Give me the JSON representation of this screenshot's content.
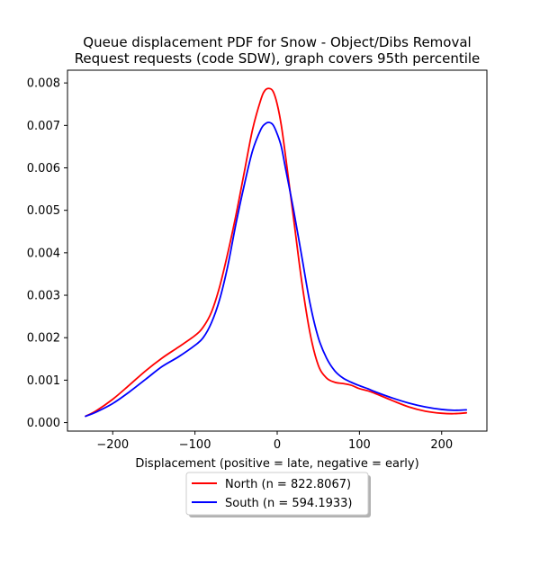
{
  "chart_data": {
    "type": "line",
    "title_lines": [
      "Queue displacement PDF for Snow - Object/Dibs Removal",
      "Request  requests (code SDW), graph covers 95th percentile"
    ],
    "xlabel": "Displacement (positive = late, negative = early)",
    "ylabel": "",
    "xlim": [
      -255,
      255
    ],
    "ylim": [
      -0.0002,
      0.0083
    ],
    "x_ticks": [
      -200,
      -100,
      0,
      100,
      200
    ],
    "x_tick_labels": [
      "−200",
      "−100",
      "0",
      "100",
      "200"
    ],
    "y_ticks": [
      0,
      0.001,
      0.002,
      0.003,
      0.004,
      0.005,
      0.006,
      0.007,
      0.008
    ],
    "y_tick_labels": [
      "0.000",
      "0.001",
      "0.002",
      "0.003",
      "0.004",
      "0.005",
      "0.006",
      "0.007",
      "0.008"
    ],
    "grid": false,
    "legend_position": "below-center",
    "series": [
      {
        "name": "North (n = 822.8067)",
        "color": "#ff0000",
        "x": [
          -233,
          -220,
          -200,
          -180,
          -160,
          -140,
          -120,
          -100,
          -90,
          -80,
          -70,
          -60,
          -50,
          -40,
          -30,
          -20,
          -15,
          -10,
          -5,
          0,
          5,
          10,
          20,
          30,
          40,
          50,
          60,
          70,
          80,
          90,
          100,
          110,
          120,
          140,
          160,
          180,
          200,
          215,
          230
        ],
        "y": [
          0.00015,
          0.00028,
          0.00055,
          0.00088,
          0.00122,
          0.00152,
          0.00178,
          0.00205,
          0.00225,
          0.0026,
          0.0032,
          0.004,
          0.0049,
          0.0059,
          0.0069,
          0.0076,
          0.00782,
          0.00787,
          0.0078,
          0.0075,
          0.007,
          0.0063,
          0.0048,
          0.0033,
          0.0021,
          0.00135,
          0.00105,
          0.00095,
          0.00092,
          0.00088,
          0.0008,
          0.00075,
          0.00068,
          0.00052,
          0.00037,
          0.00027,
          0.00022,
          0.00021,
          0.00023
        ]
      },
      {
        "name": "South (n = 594.1933)",
        "color": "#0000ff",
        "x": [
          -233,
          -220,
          -200,
          -180,
          -160,
          -140,
          -120,
          -100,
          -90,
          -80,
          -70,
          -60,
          -50,
          -40,
          -30,
          -20,
          -15,
          -10,
          -5,
          0,
          5,
          10,
          20,
          30,
          40,
          50,
          60,
          70,
          80,
          90,
          100,
          110,
          120,
          140,
          160,
          180,
          200,
          215,
          230
        ],
        "y": [
          0.00015,
          0.00025,
          0.00045,
          0.00072,
          0.00102,
          0.00132,
          0.00155,
          0.00182,
          0.002,
          0.00235,
          0.0029,
          0.0037,
          0.0047,
          0.0056,
          0.0064,
          0.0069,
          0.00703,
          0.00707,
          0.00701,
          0.0068,
          0.0065,
          0.006,
          0.005,
          0.0039,
          0.0028,
          0.002,
          0.00152,
          0.00122,
          0.00105,
          0.00095,
          0.00087,
          0.0008,
          0.00072,
          0.00058,
          0.00046,
          0.00037,
          0.00031,
          0.00029,
          0.0003
        ]
      }
    ]
  }
}
